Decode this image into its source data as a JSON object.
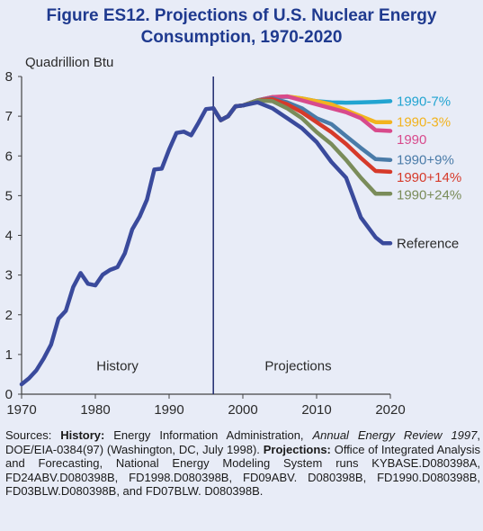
{
  "title": {
    "line1": "Figure ES12.  Projections of U.S. Nuclear Energy",
    "line2": "Consumption, 1970-2020"
  },
  "chart_data": {
    "type": "line",
    "ylabel": "Quadrillion Btu",
    "xlim": [
      1970,
      2020
    ],
    "ylim": [
      0,
      8
    ],
    "x_ticks": [
      1970,
      1980,
      1990,
      2000,
      2010,
      2020
    ],
    "y_ticks": [
      0,
      1,
      2,
      3,
      4,
      5,
      6,
      7,
      8
    ],
    "divider_year": 1996,
    "region_labels": {
      "history": "History",
      "projections": "Projections"
    },
    "history": {
      "color": "#3a4a9c",
      "points": [
        [
          1970,
          0.25
        ],
        [
          1971,
          0.4
        ],
        [
          1972,
          0.6
        ],
        [
          1973,
          0.9
        ],
        [
          1974,
          1.25
        ],
        [
          1975,
          1.9
        ],
        [
          1976,
          2.1
        ],
        [
          1977,
          2.7
        ],
        [
          1978,
          3.05
        ],
        [
          1979,
          2.78
        ],
        [
          1980,
          2.74
        ],
        [
          1981,
          3.01
        ],
        [
          1982,
          3.13
        ],
        [
          1983,
          3.2
        ],
        [
          1984,
          3.55
        ],
        [
          1985,
          4.15
        ],
        [
          1986,
          4.47
        ],
        [
          1987,
          4.9
        ],
        [
          1988,
          5.66
        ],
        [
          1989,
          5.68
        ],
        [
          1990,
          6.16
        ],
        [
          1991,
          6.58
        ],
        [
          1992,
          6.61
        ],
        [
          1993,
          6.52
        ],
        [
          1994,
          6.84
        ],
        [
          1995,
          7.18
        ],
        [
          1996,
          7.2
        ]
      ]
    },
    "series": [
      {
        "name": "1990-7%",
        "color": "#22a4d1",
        "points": [
          [
            1996,
            7.2
          ],
          [
            1997,
            6.9
          ],
          [
            1998,
            7.0
          ],
          [
            1999,
            7.25
          ],
          [
            2000,
            7.27
          ],
          [
            2002,
            7.4
          ],
          [
            2004,
            7.48
          ],
          [
            2006,
            7.49
          ],
          [
            2008,
            7.45
          ],
          [
            2010,
            7.38
          ],
          [
            2012,
            7.35
          ],
          [
            2014,
            7.34
          ],
          [
            2016,
            7.35
          ],
          [
            2018,
            7.36
          ],
          [
            2020,
            7.38
          ]
        ]
      },
      {
        "name": "1990-3%",
        "color": "#f2b31f",
        "points": [
          [
            1996,
            7.2
          ],
          [
            1997,
            6.9
          ],
          [
            1998,
            7.0
          ],
          [
            1999,
            7.25
          ],
          [
            2000,
            7.27
          ],
          [
            2002,
            7.4
          ],
          [
            2004,
            7.48
          ],
          [
            2006,
            7.5
          ],
          [
            2008,
            7.45
          ],
          [
            2010,
            7.38
          ],
          [
            2012,
            7.3
          ],
          [
            2014,
            7.15
          ],
          [
            2016,
            7.0
          ],
          [
            2018,
            6.85
          ],
          [
            2020,
            6.85
          ]
        ]
      },
      {
        "name": "1990",
        "color": "#d84a8c",
        "points": [
          [
            1996,
            7.2
          ],
          [
            1997,
            6.9
          ],
          [
            1998,
            7.0
          ],
          [
            1999,
            7.25
          ],
          [
            2000,
            7.27
          ],
          [
            2002,
            7.4
          ],
          [
            2004,
            7.48
          ],
          [
            2006,
            7.5
          ],
          [
            2008,
            7.4
          ],
          [
            2010,
            7.3
          ],
          [
            2012,
            7.2
          ],
          [
            2014,
            7.1
          ],
          [
            2016,
            6.95
          ],
          [
            2018,
            6.65
          ],
          [
            2020,
            6.63
          ]
        ]
      },
      {
        "name": "1990+9%",
        "color": "#4a7ba8",
        "points": [
          [
            1996,
            7.2
          ],
          [
            1997,
            6.9
          ],
          [
            1998,
            7.0
          ],
          [
            1999,
            7.25
          ],
          [
            2000,
            7.27
          ],
          [
            2002,
            7.4
          ],
          [
            2004,
            7.45
          ],
          [
            2006,
            7.35
          ],
          [
            2008,
            7.2
          ],
          [
            2010,
            6.95
          ],
          [
            2012,
            6.8
          ],
          [
            2014,
            6.5
          ],
          [
            2016,
            6.2
          ],
          [
            2018,
            5.92
          ],
          [
            2020,
            5.9
          ]
        ]
      },
      {
        "name": "1990+14%",
        "color": "#d63a2a",
        "points": [
          [
            1996,
            7.2
          ],
          [
            1997,
            6.9
          ],
          [
            1998,
            7.0
          ],
          [
            1999,
            7.25
          ],
          [
            2000,
            7.27
          ],
          [
            2002,
            7.4
          ],
          [
            2004,
            7.43
          ],
          [
            2006,
            7.3
          ],
          [
            2008,
            7.1
          ],
          [
            2010,
            6.85
          ],
          [
            2012,
            6.6
          ],
          [
            2014,
            6.3
          ],
          [
            2016,
            5.95
          ],
          [
            2018,
            5.62
          ],
          [
            2020,
            5.6
          ]
        ]
      },
      {
        "name": "1990+24%",
        "color": "#7a8c5a",
        "points": [
          [
            1996,
            7.2
          ],
          [
            1997,
            6.9
          ],
          [
            1998,
            7.0
          ],
          [
            1999,
            7.25
          ],
          [
            2000,
            7.27
          ],
          [
            2002,
            7.4
          ],
          [
            2004,
            7.38
          ],
          [
            2006,
            7.2
          ],
          [
            2008,
            6.95
          ],
          [
            2010,
            6.6
          ],
          [
            2012,
            6.3
          ],
          [
            2014,
            5.9
          ],
          [
            2016,
            5.45
          ],
          [
            2018,
            5.05
          ],
          [
            2020,
            5.05
          ]
        ]
      },
      {
        "name": "Reference",
        "color": "#3a4a9c",
        "points": [
          [
            1996,
            7.2
          ],
          [
            1997,
            6.9
          ],
          [
            1998,
            7.0
          ],
          [
            1999,
            7.25
          ],
          [
            2000,
            7.27
          ],
          [
            2002,
            7.35
          ],
          [
            2004,
            7.2
          ],
          [
            2006,
            6.95
          ],
          [
            2008,
            6.7
          ],
          [
            2010,
            6.35
          ],
          [
            2012,
            5.85
          ],
          [
            2014,
            5.45
          ],
          [
            2016,
            4.45
          ],
          [
            2018,
            3.95
          ],
          [
            2019,
            3.8
          ],
          [
            2020,
            3.8
          ]
        ]
      }
    ]
  },
  "source": {
    "lead": "Sources: ",
    "history_label": "History:",
    "history_text": " Energy Information Administration, ",
    "history_pub": "Annual Energy Review 1997",
    "history_rest": ", DOE/EIA-0384(97) (Washington, DC, July 1998). ",
    "projections_label": "Projections:",
    "projections_text": " Office of Integrated Analysis and Forecasting, National Energy Modeling System runs KYBASE.D080398A, FD24ABV.D080398B, FD1998.D080398B, FD09ABV. D080398B, FD1990.D080398B, FD03BLW.D080398B, and FD07BLW. D080398B."
  }
}
